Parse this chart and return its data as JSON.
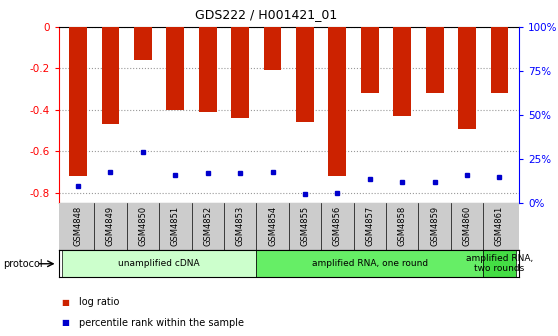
{
  "title": "GDS222 / H001421_01",
  "samples": [
    "GSM4848",
    "GSM4849",
    "GSM4850",
    "GSM4851",
    "GSM4852",
    "GSM4853",
    "GSM4854",
    "GSM4855",
    "GSM4856",
    "GSM4857",
    "GSM4858",
    "GSM4859",
    "GSM4860",
    "GSM4861"
  ],
  "log_ratio": [
    -0.72,
    -0.47,
    -0.16,
    -0.4,
    -0.41,
    -0.44,
    -0.21,
    -0.46,
    -0.72,
    -0.32,
    -0.43,
    -0.32,
    -0.49,
    -0.32
  ],
  "percentile_vals": [
    10,
    18,
    29,
    16,
    17,
    17,
    18,
    5,
    6,
    14,
    12,
    12,
    16,
    15
  ],
  "bar_color": "#cc2200",
  "dot_color": "#0000cc",
  "ylim_left": [
    -0.85,
    0.0
  ],
  "ylim_right": [
    0,
    100
  ],
  "yticks_left": [
    0.0,
    -0.2,
    -0.4,
    -0.6,
    -0.8
  ],
  "yticks_right": [
    0,
    25,
    50,
    75,
    100
  ],
  "grid_color": "#999999",
  "bg_color": "#ffffff",
  "tick_bg_color": "#cccccc",
  "protocol_groups": [
    {
      "label": "unamplified cDNA",
      "indices": [
        0,
        1,
        2,
        3,
        4,
        5
      ],
      "color": "#ccffcc"
    },
    {
      "label": "amplified RNA, one round",
      "indices": [
        6,
        7,
        8,
        9,
        10,
        11,
        12
      ],
      "color": "#66ee66"
    },
    {
      "label": "amplified RNA,\ntwo rounds",
      "indices": [
        13
      ],
      "color": "#44dd44"
    }
  ],
  "legend_log_ratio": "log ratio",
  "legend_percentile": "percentile rank within the sample",
  "bar_width": 0.55
}
